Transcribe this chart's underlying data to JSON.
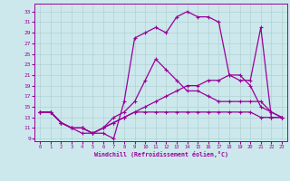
{
  "xlabel": "Windchill (Refroidissement éolien,°C)",
  "xlim": [
    -0.5,
    23.5
  ],
  "ylim": [
    8.5,
    34.5
  ],
  "ytick_vals": [
    9,
    11,
    13,
    15,
    17,
    19,
    21,
    23,
    25,
    27,
    29,
    31,
    33
  ],
  "xtick_vals": [
    0,
    1,
    2,
    3,
    4,
    5,
    6,
    7,
    8,
    9,
    10,
    11,
    12,
    13,
    14,
    15,
    16,
    17,
    18,
    19,
    20,
    21,
    22,
    23
  ],
  "bg_color": "#cce8ec",
  "grid_color": "#aacccc",
  "line_color": "#990099",
  "line_width": 0.9,
  "marker_size": 2.5,
  "lines": [
    [
      14,
      14,
      12,
      11,
      10,
      10,
      10,
      9,
      16,
      28,
      29,
      30,
      29,
      32,
      33,
      32,
      32,
      31,
      21,
      20,
      20,
      30,
      13,
      13
    ],
    [
      14,
      14,
      12,
      11,
      11,
      10,
      11,
      13,
      14,
      16,
      20,
      24,
      22,
      20,
      18,
      18,
      17,
      16,
      16,
      16,
      16,
      16,
      14,
      13
    ],
    [
      14,
      14,
      12,
      11,
      11,
      10,
      11,
      12,
      13,
      14,
      15,
      16,
      17,
      18,
      19,
      19,
      20,
      20,
      21,
      21,
      19,
      15,
      14,
      13
    ],
    [
      14,
      14,
      12,
      11,
      11,
      10,
      11,
      12,
      13,
      14,
      14,
      14,
      14,
      14,
      14,
      14,
      14,
      14,
      14,
      14,
      14,
      13,
      13,
      13
    ]
  ]
}
